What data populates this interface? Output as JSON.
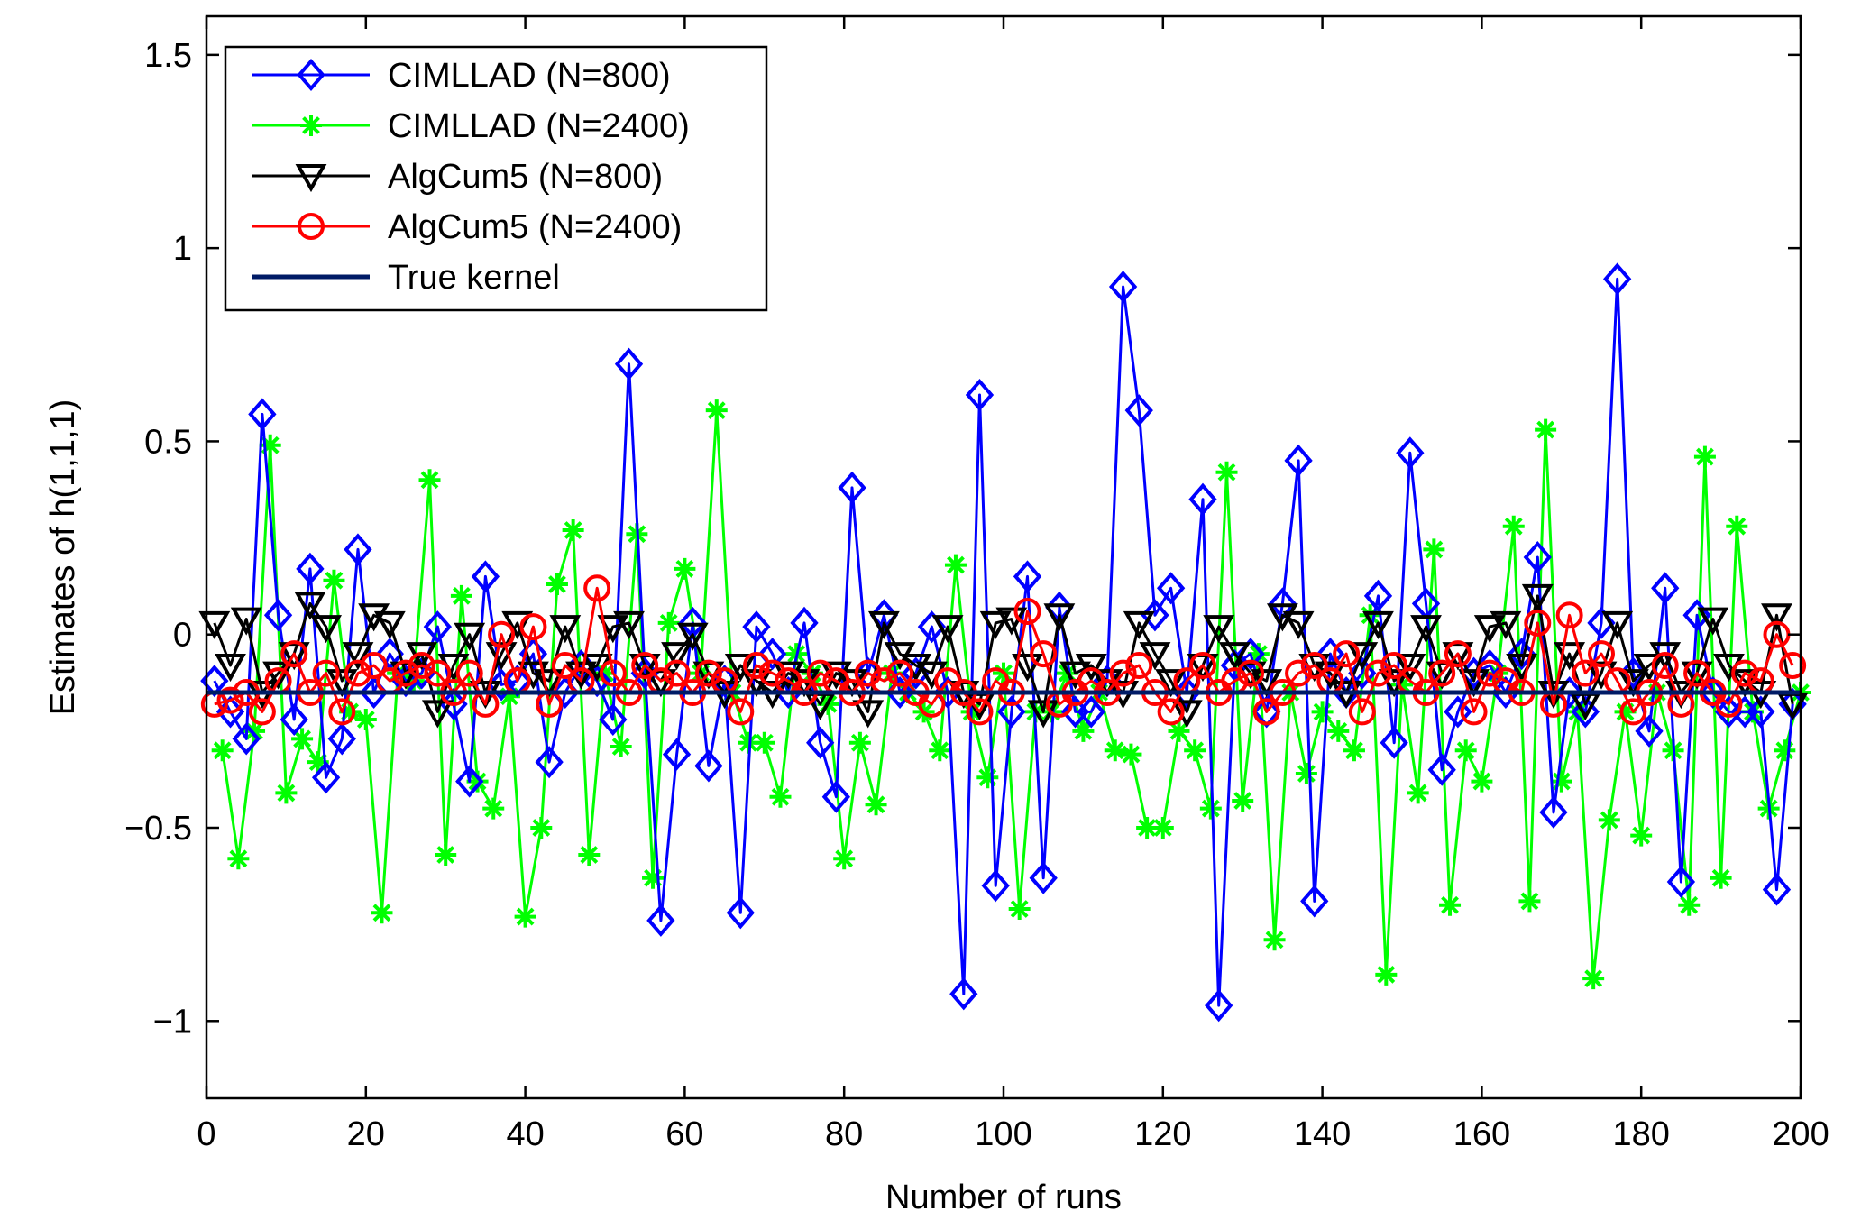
{
  "chart_data": {
    "type": "line",
    "xlabel": "Number of runs",
    "ylabel": "Estimates of h(1,1,1)",
    "xlim": [
      0,
      200
    ],
    "ylim": [
      -1.2,
      1.6
    ],
    "xticks": [
      0,
      20,
      40,
      60,
      80,
      100,
      120,
      140,
      160,
      180,
      200
    ],
    "yticks": [
      -1,
      -0.5,
      0,
      0.5,
      1,
      1.5
    ],
    "xtick_labels": [
      "0",
      "20",
      "40",
      "60",
      "80",
      "100",
      "120",
      "140",
      "160",
      "180",
      "200"
    ],
    "ytick_labels": [
      "−1",
      "−0.5",
      "0",
      "0.5",
      "1",
      "1.5"
    ],
    "legend_position": "top-left",
    "true_kernel_value": -0.15,
    "series": [
      {
        "name": "CIMLLAD (N=800)",
        "color": "#0000ff",
        "marker": "diamond",
        "x": [
          1,
          3,
          5,
          7,
          9,
          11,
          13,
          15,
          17,
          19,
          21,
          23,
          25,
          27,
          29,
          31,
          33,
          35,
          37,
          39,
          41,
          43,
          45,
          47,
          49,
          51,
          53,
          55,
          57,
          59,
          61,
          63,
          65,
          67,
          69,
          71,
          73,
          75,
          77,
          79,
          81,
          83,
          85,
          87,
          89,
          91,
          93,
          95,
          97,
          99,
          101,
          103,
          105,
          107,
          109,
          111,
          113,
          115,
          117,
          119,
          121,
          123,
          125,
          127,
          129,
          131,
          133,
          135,
          137,
          139,
          141,
          143,
          145,
          147,
          149,
          151,
          153,
          155,
          157,
          159,
          161,
          163,
          165,
          167,
          169,
          171,
          173,
          175,
          177,
          179,
          181,
          183,
          185,
          187,
          189,
          191,
          193,
          195,
          197,
          199
        ],
        "values": [
          -0.12,
          -0.2,
          -0.27,
          0.57,
          0.05,
          -0.22,
          0.17,
          -0.37,
          -0.27,
          0.22,
          -0.15,
          -0.05,
          -0.12,
          -0.1,
          0.02,
          -0.18,
          -0.38,
          0.15,
          -0.13,
          -0.12,
          -0.05,
          -0.33,
          -0.15,
          -0.08,
          -0.12,
          -0.22,
          0.7,
          -0.1,
          -0.74,
          -0.31,
          0.03,
          -0.34,
          -0.12,
          -0.72,
          0.02,
          -0.05,
          -0.15,
          0.03,
          -0.28,
          -0.42,
          0.38,
          -0.1,
          0.05,
          -0.15,
          -0.1,
          0.02,
          -0.15,
          -0.93,
          0.62,
          -0.65,
          -0.2,
          0.15,
          -0.63,
          0.07,
          -0.2,
          -0.2,
          -0.12,
          0.9,
          0.58,
          0.05,
          0.12,
          -0.15,
          0.35,
          -0.96,
          -0.08,
          -0.05,
          -0.2,
          0.08,
          0.45,
          -0.69,
          -0.05,
          -0.15,
          -0.1,
          0.1,
          -0.28,
          0.47,
          0.08,
          -0.35,
          -0.2,
          -0.1,
          -0.08,
          -0.15,
          -0.05,
          0.2,
          -0.46,
          -0.15,
          -0.2,
          0.03,
          0.92,
          -0.1,
          -0.25,
          0.12,
          -0.64,
          0.05,
          -0.15,
          -0.2,
          -0.2,
          -0.2,
          -0.66,
          -0.18
        ]
      },
      {
        "name": "CIMLLAD (N=2400)",
        "color": "#00ff00",
        "marker": "asterisk",
        "x": [
          2,
          4,
          6,
          8,
          10,
          12,
          14,
          16,
          18,
          20,
          22,
          24,
          26,
          28,
          30,
          32,
          34,
          36,
          38,
          40,
          42,
          44,
          46,
          48,
          50,
          52,
          54,
          56,
          58,
          60,
          62,
          64,
          66,
          68,
          70,
          72,
          74,
          76,
          78,
          80,
          82,
          84,
          86,
          88,
          90,
          92,
          94,
          96,
          98,
          100,
          102,
          104,
          106,
          108,
          110,
          112,
          114,
          116,
          118,
          120,
          122,
          124,
          126,
          128,
          130,
          132,
          134,
          136,
          138,
          140,
          142,
          144,
          146,
          148,
          150,
          152,
          154,
          156,
          158,
          160,
          162,
          164,
          166,
          168,
          170,
          172,
          174,
          176,
          178,
          180,
          182,
          184,
          186,
          188,
          190,
          192,
          194,
          196,
          198,
          200
        ],
        "values": [
          -0.3,
          -0.58,
          -0.25,
          0.49,
          -0.41,
          -0.27,
          -0.33,
          0.14,
          -0.2,
          -0.22,
          -0.72,
          -0.1,
          -0.12,
          0.4,
          -0.57,
          0.1,
          -0.38,
          -0.45,
          -0.16,
          -0.73,
          -0.5,
          0.13,
          0.27,
          -0.57,
          -0.1,
          -0.29,
          0.26,
          -0.63,
          0.03,
          0.17,
          -0.1,
          0.58,
          -0.15,
          -0.28,
          -0.28,
          -0.42,
          -0.05,
          -0.1,
          -0.18,
          -0.58,
          -0.28,
          -0.44,
          -0.1,
          -0.15,
          -0.2,
          -0.3,
          0.18,
          -0.2,
          -0.37,
          -0.1,
          -0.71,
          -0.2,
          -0.2,
          -0.1,
          -0.25,
          -0.15,
          -0.3,
          -0.31,
          -0.5,
          -0.5,
          -0.25,
          -0.3,
          -0.45,
          0.42,
          -0.43,
          -0.05,
          -0.79,
          -0.15,
          -0.36,
          -0.2,
          -0.25,
          -0.3,
          0.05,
          -0.88,
          -0.13,
          -0.41,
          0.22,
          -0.7,
          -0.3,
          -0.38,
          -0.1,
          0.28,
          -0.69,
          0.53,
          -0.38,
          -0.2,
          -0.89,
          -0.48,
          -0.2,
          -0.52,
          -0.15,
          -0.3,
          -0.7,
          0.46,
          -0.63,
          0.28,
          -0.2,
          -0.45,
          -0.3,
          -0.15
        ]
      },
      {
        "name": "AlgCum5 (N=800)",
        "color": "#000000",
        "marker": "triangle-down",
        "x": [
          1,
          3,
          5,
          7,
          9,
          11,
          13,
          15,
          17,
          19,
          21,
          23,
          25,
          27,
          29,
          31,
          33,
          35,
          37,
          39,
          41,
          43,
          45,
          47,
          49,
          51,
          53,
          55,
          57,
          59,
          61,
          63,
          65,
          67,
          69,
          71,
          73,
          75,
          77,
          79,
          81,
          83,
          85,
          87,
          89,
          91,
          93,
          95,
          97,
          99,
          101,
          103,
          105,
          107,
          109,
          111,
          113,
          115,
          117,
          119,
          121,
          123,
          125,
          127,
          129,
          131,
          133,
          135,
          137,
          139,
          141,
          143,
          145,
          147,
          149,
          151,
          153,
          155,
          157,
          159,
          161,
          163,
          165,
          167,
          169,
          171,
          173,
          175,
          177,
          179,
          181,
          183,
          185,
          187,
          189,
          191,
          193,
          195,
          197,
          199
        ],
        "values": [
          0.03,
          -0.08,
          0.04,
          -0.15,
          -0.1,
          -0.05,
          0.08,
          0.02,
          -0.12,
          -0.05,
          0.05,
          0.03,
          -0.1,
          -0.05,
          -0.2,
          -0.08,
          0.0,
          -0.15,
          -0.05,
          0.03,
          -0.1,
          -0.12,
          0.02,
          -0.1,
          -0.08,
          0.02,
          0.03,
          -0.08,
          -0.12,
          -0.05,
          0.0,
          -0.1,
          -0.15,
          -0.08,
          -0.12,
          -0.15,
          -0.1,
          -0.12,
          -0.18,
          -0.1,
          -0.12,
          -0.2,
          0.03,
          -0.05,
          -0.08,
          -0.1,
          0.02,
          -0.15,
          -0.18,
          0.03,
          0.04,
          -0.08,
          -0.2,
          0.05,
          -0.1,
          -0.08,
          -0.12,
          -0.15,
          0.03,
          -0.05,
          -0.12,
          -0.2,
          -0.08,
          0.02,
          -0.05,
          -0.1,
          -0.12,
          0.05,
          0.03,
          -0.08,
          -0.1,
          -0.15,
          -0.05,
          0.03,
          -0.12,
          -0.08,
          0.02,
          -0.1,
          -0.05,
          -0.12,
          0.02,
          0.03,
          -0.08,
          0.1,
          -0.15,
          -0.05,
          -0.18,
          -0.1,
          0.03,
          -0.12,
          -0.08,
          -0.05,
          -0.15,
          -0.1,
          0.04,
          -0.08,
          -0.12,
          -0.15,
          0.05,
          -0.18
        ]
      },
      {
        "name": "AlgCum5 (N=2400)",
        "color": "#ff0000",
        "marker": "circle",
        "x": [
          1,
          3,
          5,
          7,
          9,
          11,
          13,
          15,
          17,
          19,
          21,
          23,
          25,
          27,
          29,
          31,
          33,
          35,
          37,
          39,
          41,
          43,
          45,
          47,
          49,
          51,
          53,
          55,
          57,
          59,
          61,
          63,
          65,
          67,
          69,
          71,
          73,
          75,
          77,
          79,
          81,
          83,
          85,
          87,
          89,
          91,
          93,
          95,
          97,
          99,
          101,
          103,
          105,
          107,
          109,
          111,
          113,
          115,
          117,
          119,
          121,
          123,
          125,
          127,
          129,
          131,
          133,
          135,
          137,
          139,
          141,
          143,
          145,
          147,
          149,
          151,
          153,
          155,
          157,
          159,
          161,
          163,
          165,
          167,
          169,
          171,
          173,
          175,
          177,
          179,
          181,
          183,
          185,
          187,
          189,
          191,
          193,
          195,
          197,
          199
        ],
        "values": [
          -0.18,
          -0.17,
          -0.15,
          -0.2,
          -0.12,
          -0.05,
          -0.15,
          -0.1,
          -0.2,
          -0.1,
          -0.08,
          -0.12,
          -0.1,
          -0.08,
          -0.1,
          -0.15,
          -0.1,
          -0.18,
          0.0,
          -0.12,
          0.02,
          -0.18,
          -0.08,
          -0.12,
          0.12,
          -0.1,
          -0.15,
          -0.08,
          -0.12,
          -0.1,
          -0.15,
          -0.1,
          -0.12,
          -0.2,
          -0.08,
          -0.1,
          -0.12,
          -0.15,
          -0.1,
          -0.12,
          -0.15,
          -0.1,
          -0.12,
          -0.1,
          -0.15,
          -0.18,
          -0.12,
          -0.15,
          -0.2,
          -0.12,
          -0.15,
          0.06,
          -0.05,
          -0.18,
          -0.15,
          -0.12,
          -0.15,
          -0.1,
          -0.08,
          -0.15,
          -0.2,
          -0.12,
          -0.08,
          -0.15,
          -0.12,
          -0.1,
          -0.2,
          -0.15,
          -0.1,
          -0.08,
          -0.12,
          -0.05,
          -0.2,
          -0.1,
          -0.08,
          -0.12,
          -0.15,
          -0.1,
          -0.05,
          -0.2,
          -0.1,
          -0.12,
          -0.15,
          0.03,
          -0.18,
          0.05,
          -0.1,
          -0.05,
          -0.12,
          -0.2,
          -0.15,
          -0.08,
          -0.18,
          -0.1,
          -0.15,
          -0.18,
          -0.1,
          -0.12,
          0.0,
          -0.08
        ]
      },
      {
        "name": "True kernel",
        "color": "#001b66",
        "marker": "none",
        "x": [
          0,
          200
        ],
        "values": [
          -0.15,
          -0.15
        ]
      }
    ]
  }
}
